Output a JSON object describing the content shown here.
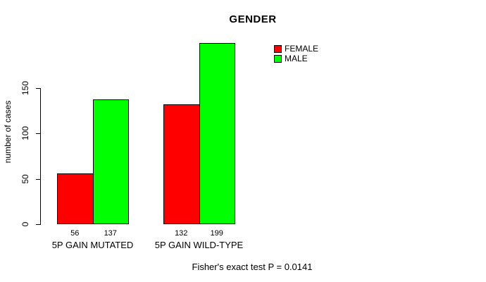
{
  "chart_data": {
    "type": "bar",
    "title": "GENDER",
    "ylabel": "number of cases",
    "xlabel": "",
    "categories": [
      "5P GAIN MUTATED",
      "5P GAIN WILD-TYPE"
    ],
    "series": [
      {
        "name": "FEMALE",
        "color": "#ff0000",
        "values": [
          56,
          132
        ]
      },
      {
        "name": "MALE",
        "color": "#00ff00",
        "values": [
          137,
          199
        ]
      }
    ],
    "yticks": [
      0,
      50,
      100,
      150
    ],
    "ylim": [
      0,
      199
    ],
    "grid": false,
    "bar_border_color": "#000000",
    "legend": {
      "position": "top-right",
      "frame": false,
      "entries": [
        "FEMALE",
        "MALE"
      ]
    },
    "value_labels_shown": true,
    "annotation": "Fisher's exact test P = 0.0141"
  }
}
